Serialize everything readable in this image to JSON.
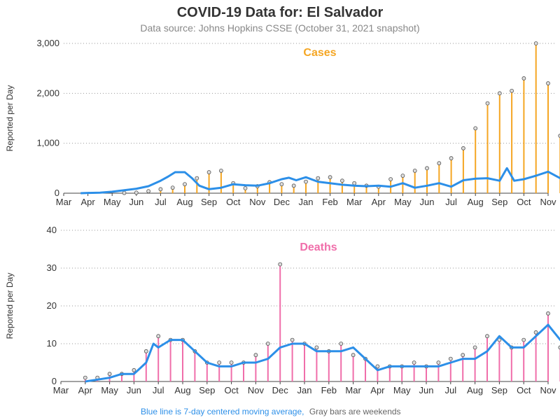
{
  "title": "COVID-19 Data for: El Salvador",
  "subtitle": "Data source: Johns Hopkins CSSE (October 31, 2021 snapshot)",
  "footer": {
    "blue_text": "Blue line is 7-day centered moving average,",
    "gray_text": "Gray bars are weekends"
  },
  "colors": {
    "cases": "#f5a623",
    "deaths": "#f06eaa",
    "moving_average": "#2c8fe8",
    "weekend": "#888888",
    "grid": "#999999"
  },
  "chart_data": [
    {
      "type": "bar",
      "title": "Cases",
      "ylabel": "Reported per Day",
      "ylim": [
        0,
        3000
      ],
      "yticks": [
        "0",
        "1,000",
        "2,000",
        "3,000"
      ],
      "yticks_values": [
        0,
        1000,
        2000,
        3000
      ],
      "xticks": [
        "Mar",
        "Apr",
        "May",
        "Jun",
        "Jul",
        "Aug",
        "Sep",
        "Oct",
        "Nov",
        "Dec",
        "Jan",
        "Feb",
        "Mar",
        "Apr",
        "May",
        "Jun",
        "Jul",
        "Aug",
        "Sep",
        "Oct",
        "Nov"
      ],
      "grid": true,
      "series": [
        {
          "name": "Reported per Day",
          "x": [
            2.5,
            3.0,
            3.5,
            4.0,
            4.5,
            5.0,
            5.5,
            6.0,
            6.5,
            7.0,
            7.5,
            8.0,
            8.5,
            9.0,
            9.5,
            10.0,
            10.5,
            11.0,
            11.5,
            12.0,
            12.5,
            13.0,
            13.5,
            14.0,
            14.5,
            15.0,
            15.5,
            16.0,
            16.5,
            17.0,
            17.5,
            18.0,
            18.5,
            19.0,
            19.5,
            20.0,
            20.5
          ],
          "values": [
            5,
            10,
            40,
            80,
            110,
            180,
            300,
            420,
            450,
            200,
            100,
            140,
            220,
            180,
            150,
            230,
            300,
            320,
            250,
            200,
            150,
            130,
            280,
            350,
            450,
            500,
            600,
            700,
            900,
            1300,
            1800,
            2000,
            2050,
            2300,
            3000,
            2200,
            1150
          ]
        },
        {
          "name": "7-day centered moving average",
          "x": [
            0.7,
            1.0,
            1.5,
            2.0,
            2.5,
            3.0,
            3.5,
            4.0,
            4.3,
            4.6,
            5.0,
            5.3,
            5.6,
            6.0,
            6.5,
            7.0,
            7.5,
            8.0,
            8.5,
            9.0,
            9.3,
            9.6,
            10.0,
            10.5,
            11.0,
            11.5,
            12.0,
            12.5,
            13.0,
            13.5,
            14.0,
            14.5,
            15.0,
            15.5,
            16.0,
            16.5,
            17.0,
            17.5,
            18.0,
            18.3,
            18.6,
            19.0,
            19.5,
            20.0,
            20.5,
            20.8
          ],
          "values": [
            0,
            5,
            10,
            30,
            60,
            90,
            140,
            250,
            330,
            420,
            420,
            300,
            150,
            80,
            110,
            180,
            160,
            150,
            200,
            280,
            310,
            260,
            320,
            230,
            200,
            170,
            150,
            140,
            150,
            130,
            200,
            110,
            150,
            200,
            130,
            260,
            290,
            300,
            250,
            500,
            250,
            280,
            350,
            430,
            300,
            200
          ]
        }
      ]
    },
    {
      "type": "bar",
      "title": "Deaths",
      "ylabel": "Reported per Day",
      "ylim": [
        0,
        40
      ],
      "yticks": [
        "0",
        "10",
        "20",
        "30",
        "40"
      ],
      "yticks_values": [
        0,
        10,
        20,
        30,
        40
      ],
      "xticks": [
        "Mar",
        "Apr",
        "May",
        "Jun",
        "Jul",
        "Aug",
        "Sep",
        "Oct",
        "Nov",
        "Dec",
        "Jan",
        "Feb",
        "Mar",
        "Apr",
        "May",
        "Jun",
        "Jul",
        "Aug",
        "Sep",
        "Oct",
        "Nov"
      ],
      "grid": true,
      "series": [
        {
          "name": "Reported per Day",
          "x": [
            1.0,
            1.5,
            2.0,
            2.5,
            3.0,
            3.5,
            4.0,
            4.5,
            5.0,
            5.5,
            6.0,
            6.5,
            7.0,
            7.5,
            8.0,
            8.5,
            9.0,
            9.5,
            10.0,
            10.5,
            11.0,
            11.5,
            12.0,
            12.5,
            13.0,
            13.5,
            14.0,
            14.5,
            15.0,
            15.5,
            16.0,
            16.5,
            17.0,
            17.5,
            18.0,
            18.5,
            19.0,
            19.5,
            20.0,
            20.5
          ],
          "values": [
            1,
            1,
            2,
            2,
            3,
            8,
            12,
            11,
            11,
            8,
            5,
            5,
            5,
            5,
            7,
            10,
            31,
            11,
            10,
            9,
            8,
            10,
            7,
            6,
            4,
            4,
            4,
            5,
            4,
            5,
            6,
            7,
            9,
            12,
            11,
            9,
            11,
            13,
            18,
            9
          ]
        },
        {
          "name": "7-day centered moving average",
          "x": [
            1.0,
            1.5,
            2.0,
            2.5,
            3.0,
            3.5,
            3.8,
            4.0,
            4.5,
            5.0,
            5.5,
            6.0,
            6.5,
            7.0,
            7.5,
            8.0,
            8.5,
            9.0,
            9.5,
            10.0,
            10.5,
            11.0,
            11.5,
            12.0,
            12.5,
            13.0,
            13.5,
            14.0,
            14.5,
            15.0,
            15.5,
            16.0,
            16.5,
            17.0,
            17.5,
            18.0,
            18.5,
            19.0,
            19.5,
            20.0,
            20.5,
            20.9
          ],
          "values": [
            0,
            0.5,
            1,
            2,
            2,
            5,
            10,
            9,
            11,
            11,
            8,
            5,
            4,
            4,
            5,
            5,
            6,
            9,
            10,
            10,
            8,
            8,
            8,
            9,
            6,
            3,
            4,
            4,
            4,
            4,
            4,
            5,
            6,
            6,
            8,
            12,
            9,
            9,
            12,
            15,
            11,
            9
          ]
        }
      ]
    }
  ]
}
